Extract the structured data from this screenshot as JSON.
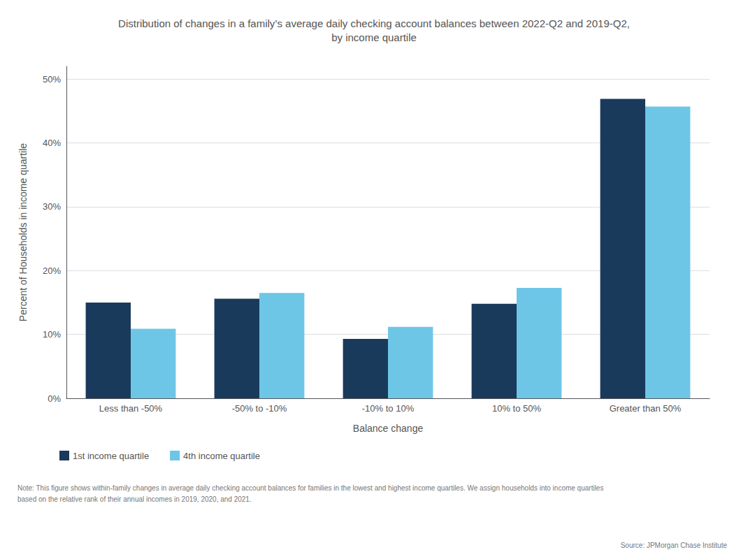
{
  "chart_data": {
    "type": "bar",
    "title": "Distribution of changes in a family’s average daily checking account balances between 2022-Q2 and 2019-Q2,\nby income quartile",
    "xlabel": "Balance change",
    "ylabel": "Percent of Households in income quartile",
    "categories": [
      "Less than -50%",
      "-50% to -10%",
      "-10% to 10%",
      "10% to 50%",
      "Greater than 50%"
    ],
    "series": [
      {
        "name": "1st income quartile",
        "color": "#1a3a5c",
        "values": [
          0.15,
          0.156,
          0.093,
          0.148,
          0.469
        ]
      },
      {
        "name": "4th income quartile",
        "color": "#6ec6e6",
        "values": [
          0.109,
          0.165,
          0.112,
          0.173,
          0.457
        ]
      }
    ],
    "ylim": [
      0,
      0.52
    ],
    "yticks": [
      {
        "value": 0.0,
        "label": "0%"
      },
      {
        "value": 0.1,
        "label": "10%"
      },
      {
        "value": 0.2,
        "label": "20%"
      },
      {
        "value": 0.3,
        "label": "30%"
      },
      {
        "value": 0.4,
        "label": "40%"
      },
      {
        "value": 0.5,
        "label": "50%"
      }
    ],
    "grid": true,
    "legend": "lower left",
    "annotations": [
      "Note: This figure shows within-family changes in average daily checking account balances for families in the lowest and highest income quartiles. We assign households into income quartiles\nbased on the relative rank of their annual incomes in 2019, 2020, and 2021.",
      "Source: JPMorgan Chase Institute"
    ]
  }
}
